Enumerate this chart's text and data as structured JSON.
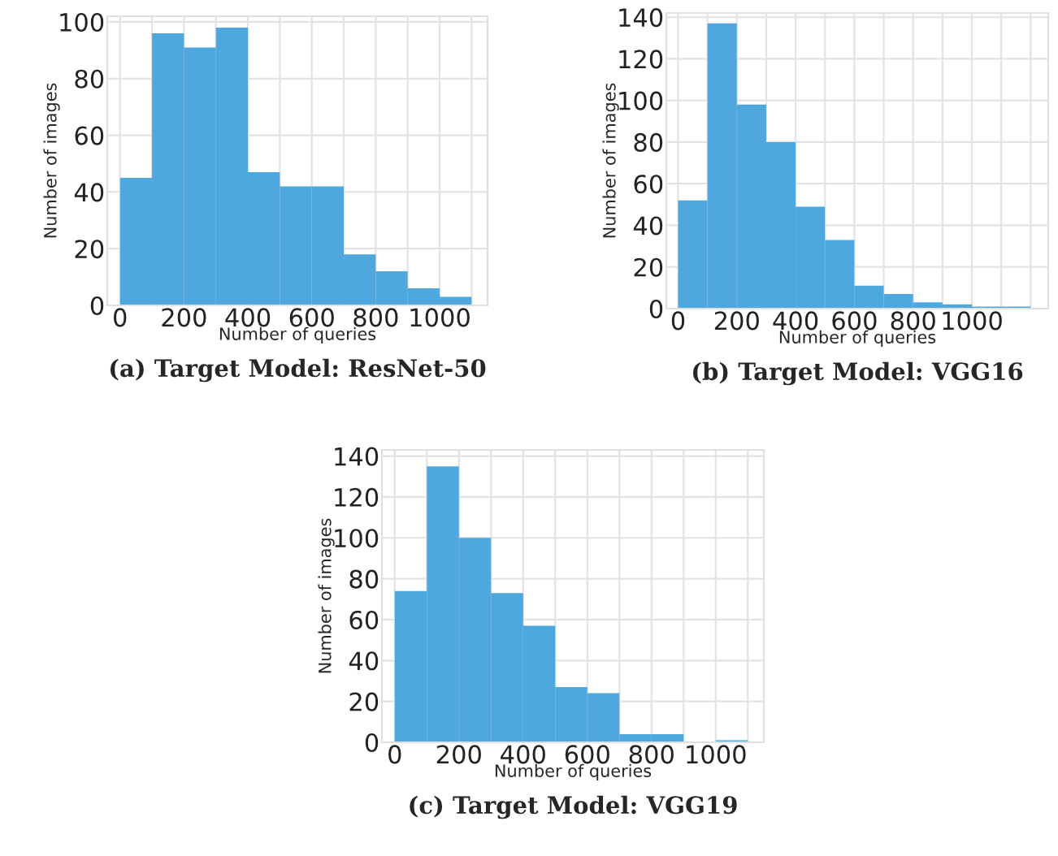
{
  "chart_data": [
    {
      "type": "histogram",
      "title": "(a) Target Model: ResNet-50",
      "xlabel": "Number of queries",
      "ylabel": "Number of images",
      "color": "#4ea8dd",
      "bins": [
        0,
        100,
        200,
        300,
        400,
        500,
        600,
        700,
        800,
        900,
        1000,
        1100
      ],
      "values": [
        45,
        96,
        91,
        98,
        47,
        42,
        42,
        18,
        12,
        6,
        3
      ],
      "xlim": [
        -40,
        1150
      ],
      "ylim": [
        0,
        102
      ],
      "xticks": [
        0,
        {
          "value": 100,
          "label": null
        },
        200,
        {
          "value": 300,
          "label": null
        },
        400,
        {
          "value": 500,
          "label": null
        },
        600,
        {
          "value": 700,
          "label": null
        },
        800,
        {
          "value": 900,
          "label": null
        },
        1000,
        {
          "value": 1100,
          "label": null
        }
      ],
      "yticks": [
        0,
        20,
        40,
        60,
        80,
        100
      ],
      "grid": true
    },
    {
      "type": "histogram",
      "title": "(b) Target Model: VGG16",
      "xlabel": "Number of queries",
      "ylabel": "Number of images",
      "color": "#4ea8dd",
      "bins": [
        0,
        100,
        200,
        300,
        400,
        500,
        600,
        700,
        800,
        900,
        1000,
        1100,
        1200
      ],
      "values": [
        52,
        137,
        98,
        80,
        49,
        33,
        11,
        7,
        3,
        2,
        1,
        1
      ],
      "xlim": [
        -40,
        1260
      ],
      "ylim": [
        0,
        142
      ],
      "xticks": [
        0,
        {
          "value": 100,
          "label": null
        },
        200,
        {
          "value": 300,
          "label": null
        },
        400,
        {
          "value": 500,
          "label": null
        },
        600,
        {
          "value": 700,
          "label": null
        },
        800,
        {
          "value": 900,
          "label": null
        },
        1000,
        {
          "value": 1100,
          "label": null
        },
        {
          "value": 1200,
          "label": null
        }
      ],
      "yticks": [
        0,
        20,
        40,
        60,
        80,
        100,
        120,
        140
      ],
      "grid": true
    },
    {
      "type": "histogram",
      "title": "(c) Target Model: VGG19",
      "xlabel": "Number of queries",
      "ylabel": "Number of images",
      "color": "#4ea8dd",
      "bins": [
        0,
        100,
        200,
        300,
        400,
        500,
        600,
        700,
        800,
        900,
        1000,
        1100
      ],
      "values": [
        74,
        135,
        100,
        73,
        57,
        27,
        24,
        4,
        4,
        0,
        1
      ],
      "xlim": [
        -40,
        1150
      ],
      "ylim": [
        0,
        143
      ],
      "xticks": [
        0,
        {
          "value": 100,
          "label": null
        },
        200,
        {
          "value": 300,
          "label": null
        },
        400,
        {
          "value": 500,
          "label": null
        },
        600,
        {
          "value": 700,
          "label": null
        },
        800,
        {
          "value": 900,
          "label": null
        },
        1000,
        {
          "value": 1100,
          "label": null
        }
      ],
      "yticks": [
        0,
        20,
        40,
        60,
        80,
        100,
        120,
        140
      ],
      "grid": true
    }
  ]
}
